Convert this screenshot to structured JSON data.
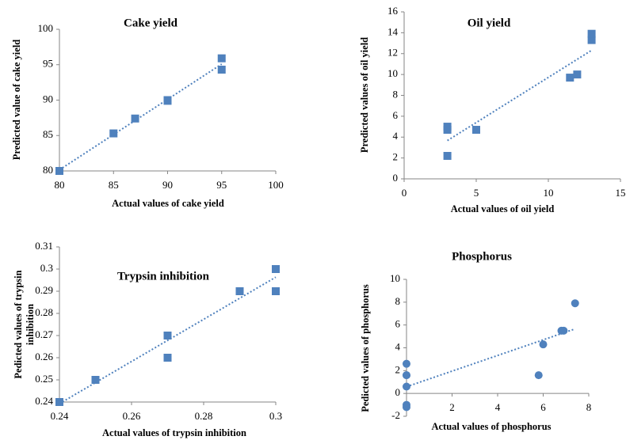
{
  "chart_data": [
    {
      "type": "scatter",
      "title": "Cake yield",
      "x_label": "Actual values of cake yield",
      "y_label": [
        "Predicted value of cake yield"
      ],
      "marker": "square",
      "color": "#4f81bd",
      "trendline": true,
      "x": [
        80,
        85,
        87,
        90,
        90,
        95,
        95
      ],
      "values": [
        80,
        85.3,
        87.4,
        90,
        89.9,
        95.9,
        94.3
      ],
      "xlim": [
        80,
        100
      ],
      "xticks": [
        80,
        85,
        90,
        95,
        100
      ],
      "ylim": [
        80,
        100
      ],
      "yticks": [
        80,
        85,
        90,
        95,
        100
      ]
    },
    {
      "type": "scatter",
      "title": "Oil yield",
      "x_label": "Actual values of oil yield",
      "y_label": [
        "Predicted values of oil yield"
      ],
      "marker": "square",
      "color": "#4f81bd",
      "trendline": true,
      "x": [
        3,
        3,
        3,
        5,
        11.5,
        12,
        13,
        13
      ],
      "values": [
        2.2,
        4.7,
        5.0,
        4.7,
        9.7,
        10,
        13.3,
        13.9
      ],
      "xlim": [
        0,
        15
      ],
      "xticks": [
        0,
        5,
        10,
        15
      ],
      "ylim": [
        0,
        16
      ],
      "yticks": [
        0,
        2,
        4,
        6,
        8,
        10,
        12,
        14,
        16
      ]
    },
    {
      "type": "scatter",
      "title": "Trypsin inhibition",
      "x_label": "Actual values of trypsin inhibition",
      "y_label": [
        "Pedicted values of trypsin",
        "inhibition"
      ],
      "marker": "square",
      "color": "#4f81bd",
      "trendline": true,
      "x": [
        0.24,
        0.25,
        0.27,
        0.27,
        0.29,
        0.29,
        0.3,
        0.3
      ],
      "values": [
        0.24,
        0.25,
        0.27,
        0.26,
        0.29,
        0.29,
        0.3,
        0.29
      ],
      "xlim": [
        0.24,
        0.3
      ],
      "xticks": [
        0.24,
        0.26,
        0.28,
        0.3
      ],
      "ylim": [
        0.24,
        0.31
      ],
      "yticks": [
        0.24,
        0.25,
        0.26,
        0.27,
        0.28,
        0.29,
        0.3,
        0.31
      ]
    },
    {
      "type": "scatter",
      "title": "Phosphorus",
      "x_label": "Actual values of phosphorus",
      "y_label": [
        "Pedicted values of phosphorus"
      ],
      "marker": "circle",
      "color": "#4f81bd",
      "trendline": true,
      "x": [
        0,
        0,
        0,
        0,
        0,
        0,
        5.8,
        6,
        6.8,
        6.9,
        7.4
      ],
      "values": [
        -1,
        -1.2,
        0.6,
        1.6,
        1.6,
        2.6,
        1.6,
        4.3,
        5.5,
        5.5,
        7.9
      ],
      "xlim": [
        0,
        8
      ],
      "xticks": [
        0,
        2,
        4,
        6,
        8
      ],
      "ylim": [
        -2,
        10
      ],
      "yticks": [
        -2,
        0,
        2,
        4,
        6,
        8,
        10
      ]
    }
  ]
}
